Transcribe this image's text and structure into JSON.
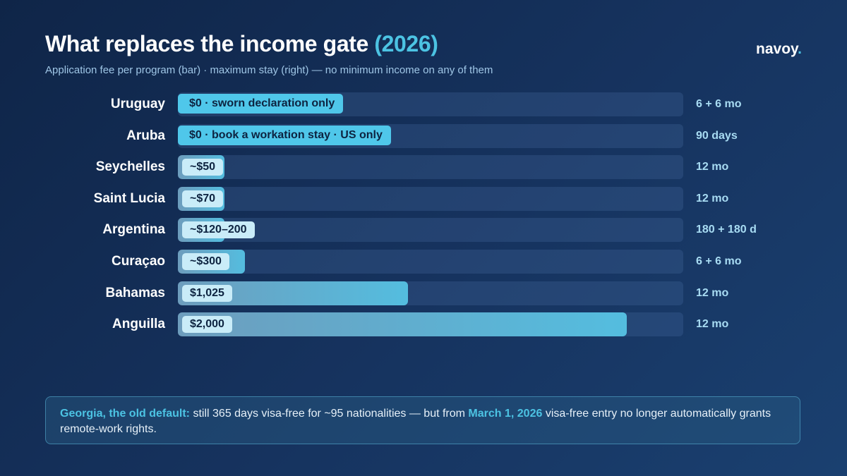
{
  "header": {
    "title": "What replaces the income gate",
    "title_year": "(2026)",
    "subtitle": "Application fee per program (bar) · maximum stay (right) — no minimum income on any of them",
    "brand": "navoy",
    "brand_dot": "."
  },
  "colors": {
    "accent": "#4cc3e3",
    "background": "#0f2548",
    "bar_fill": "#54bddf",
    "track": "#2a4470",
    "label_pill": "#c9ecf8"
  },
  "chart_data": {
    "type": "bar",
    "orientation": "horizontal",
    "categories": [
      "Uruguay",
      "Aruba",
      "Seychelles",
      "Saint Lucia",
      "Argentina",
      "Curaçao",
      "Bahamas",
      "Anguilla"
    ],
    "values": [
      0,
      0,
      50,
      70,
      160,
      300,
      1025,
      2000
    ],
    "xlim": [
      0,
      2250
    ],
    "data_labels": [
      "$0 · sworn declaration only",
      "$0 · book a workation stay · US only",
      "~$50",
      "~$70",
      "~$120–200",
      "~$300",
      "$1,025",
      "$2,000"
    ],
    "max_stay": [
      "6 + 6 mo",
      "90 days",
      "12 mo",
      "12 mo",
      "180 + 180 d",
      "6 + 6 mo",
      "12 mo",
      "12 mo"
    ],
    "grid": false,
    "legend": "none"
  },
  "note": {
    "lead": "Georgia, the old default:",
    "text1": " still 365 days visa-free for ~95 nationalities — but from ",
    "date": "March 1, 2026",
    "text2": " visa-free entry no longer automatically grants remote-work rights."
  }
}
